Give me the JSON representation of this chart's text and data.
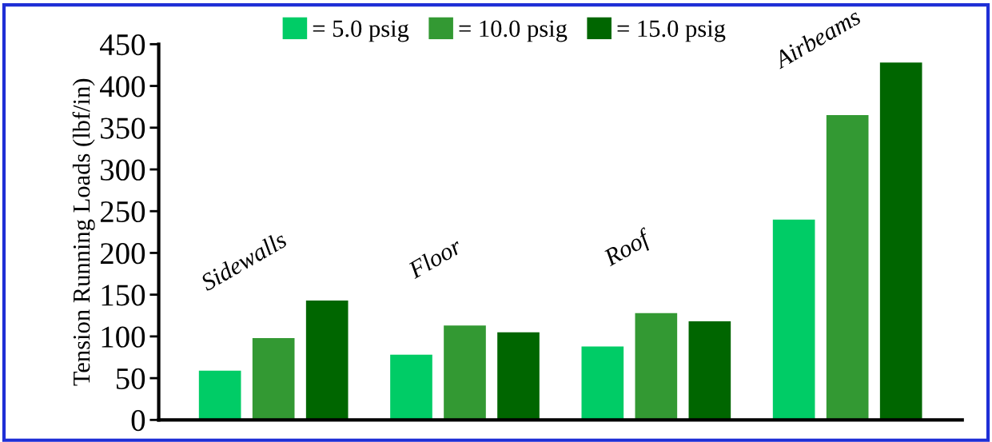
{
  "chart_data": {
    "type": "bar",
    "ylabel": "Tension Running Loads (lbf/in)",
    "categories": [
      "Sidewalls",
      "Floor",
      "Roof",
      "Airbeams"
    ],
    "series": [
      {
        "name": "= 5.0 psig",
        "color": "#00cc66",
        "values": [
          59,
          78,
          88,
          240
        ]
      },
      {
        "name": "= 10.0 psig",
        "color": "#339933",
        "values": [
          98,
          113,
          128,
          365
        ]
      },
      {
        "name": "= 15.0 psig",
        "color": "#006600",
        "values": [
          143,
          105,
          118,
          428
        ]
      }
    ],
    "ylim": [
      0,
      450
    ],
    "yticks": [
      0,
      50,
      100,
      150,
      200,
      250,
      300,
      350,
      400,
      450
    ],
    "grid": false,
    "legend": "top",
    "tick_labels": "y"
  }
}
